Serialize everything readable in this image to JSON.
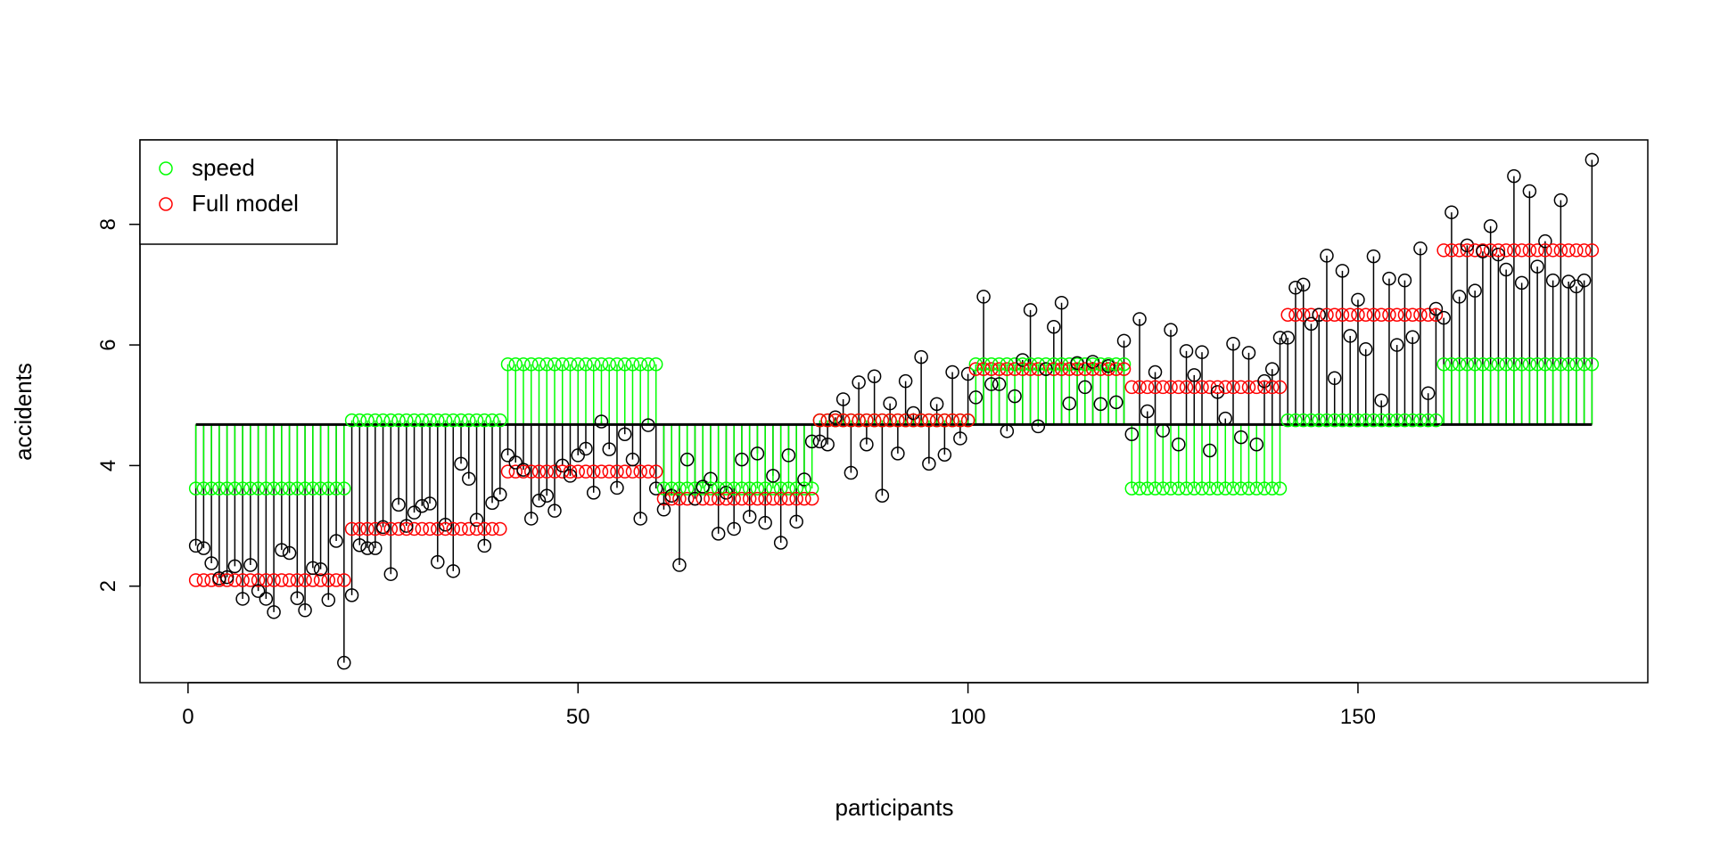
{
  "chart_data": {
    "type": "scatter",
    "title": "",
    "xlabel": "participants",
    "ylabel": "accidents",
    "xlim": [
      -6.16,
      187.16
    ],
    "ylim": [
      0.4,
      9.4
    ],
    "xticks": [
      0,
      50,
      100,
      150
    ],
    "yticks": [
      2,
      4,
      6,
      8
    ],
    "grid": false,
    "legend_position": "top-left",
    "grand_mean": 4.68,
    "colors": {
      "observed": "#000000",
      "speed": "#00ff00",
      "full_model": "#ff0000"
    },
    "legend": [
      {
        "label": "speed",
        "color": "#00ff00"
      },
      {
        "label": "Full model",
        "color": "#ff0000"
      }
    ],
    "group_size": 20,
    "speed_group_means": [
      3.62,
      4.75,
      5.68,
      3.62,
      4.75,
      5.68,
      3.62,
      4.75,
      5.68
    ],
    "full_model_group_means": [
      2.1,
      2.95,
      3.9,
      3.45,
      4.75,
      5.6,
      5.3,
      6.5,
      7.57
    ],
    "observed": [
      2.67,
      2.63,
      2.38,
      2.13,
      2.15,
      2.33,
      1.79,
      2.35,
      1.92,
      1.79,
      1.57,
      2.6,
      2.55,
      1.8,
      1.6,
      2.3,
      2.28,
      1.77,
      2.75,
      0.73,
      1.85,
      2.68,
      2.63,
      2.63,
      2.98,
      2.2,
      3.35,
      3.0,
      3.22,
      3.33,
      3.37,
      2.4,
      3.02,
      2.25,
      4.03,
      3.78,
      3.1,
      2.67,
      3.38,
      3.52,
      4.17,
      4.05,
      3.93,
      3.12,
      3.42,
      3.5,
      3.25,
      4.0,
      3.83,
      4.17,
      4.28,
      3.55,
      4.73,
      4.27,
      3.63,
      4.52,
      4.1,
      3.12,
      4.67,
      3.62,
      3.27,
      3.5,
      2.35,
      4.1,
      3.45,
      3.65,
      3.78,
      2.87,
      3.55,
      2.95,
      4.1,
      3.15,
      4.2,
      3.05,
      3.83,
      2.72,
      4.17,
      3.07,
      3.77,
      4.4,
      4.4,
      4.35,
      4.8,
      5.1,
      3.88,
      5.38,
      4.35,
      5.48,
      3.5,
      5.03,
      4.2,
      5.4,
      4.87,
      5.8,
      4.03,
      5.02,
      4.18,
      5.55,
      4.45,
      5.52,
      5.13,
      6.8,
      5.35,
      5.35,
      4.57,
      5.15,
      5.75,
      6.58,
      4.65,
      5.6,
      6.3,
      6.7,
      5.03,
      5.7,
      5.3,
      5.72,
      5.02,
      5.65,
      5.05,
      6.07,
      4.52,
      6.43,
      4.9,
      5.55,
      4.58,
      6.25,
      4.35,
      5.9,
      5.5,
      5.88,
      4.25,
      5.22,
      4.78,
      6.02,
      4.47,
      5.87,
      4.35,
      5.4,
      5.6,
      6.12,
      6.12,
      6.95,
      7.0,
      6.35,
      6.5,
      7.48,
      5.45,
      7.23,
      6.15,
      6.75,
      5.93,
      7.47,
      5.08,
      7.1,
      6.0,
      7.07,
      6.13,
      7.6,
      5.2,
      6.6,
      6.45,
      8.2,
      6.8,
      7.65,
      6.9,
      7.55,
      7.97,
      7.5,
      7.25,
      8.8,
      7.03,
      8.55,
      7.3,
      7.72,
      7.07,
      8.4,
      7.05,
      6.97,
      7.07,
      9.07
    ]
  }
}
